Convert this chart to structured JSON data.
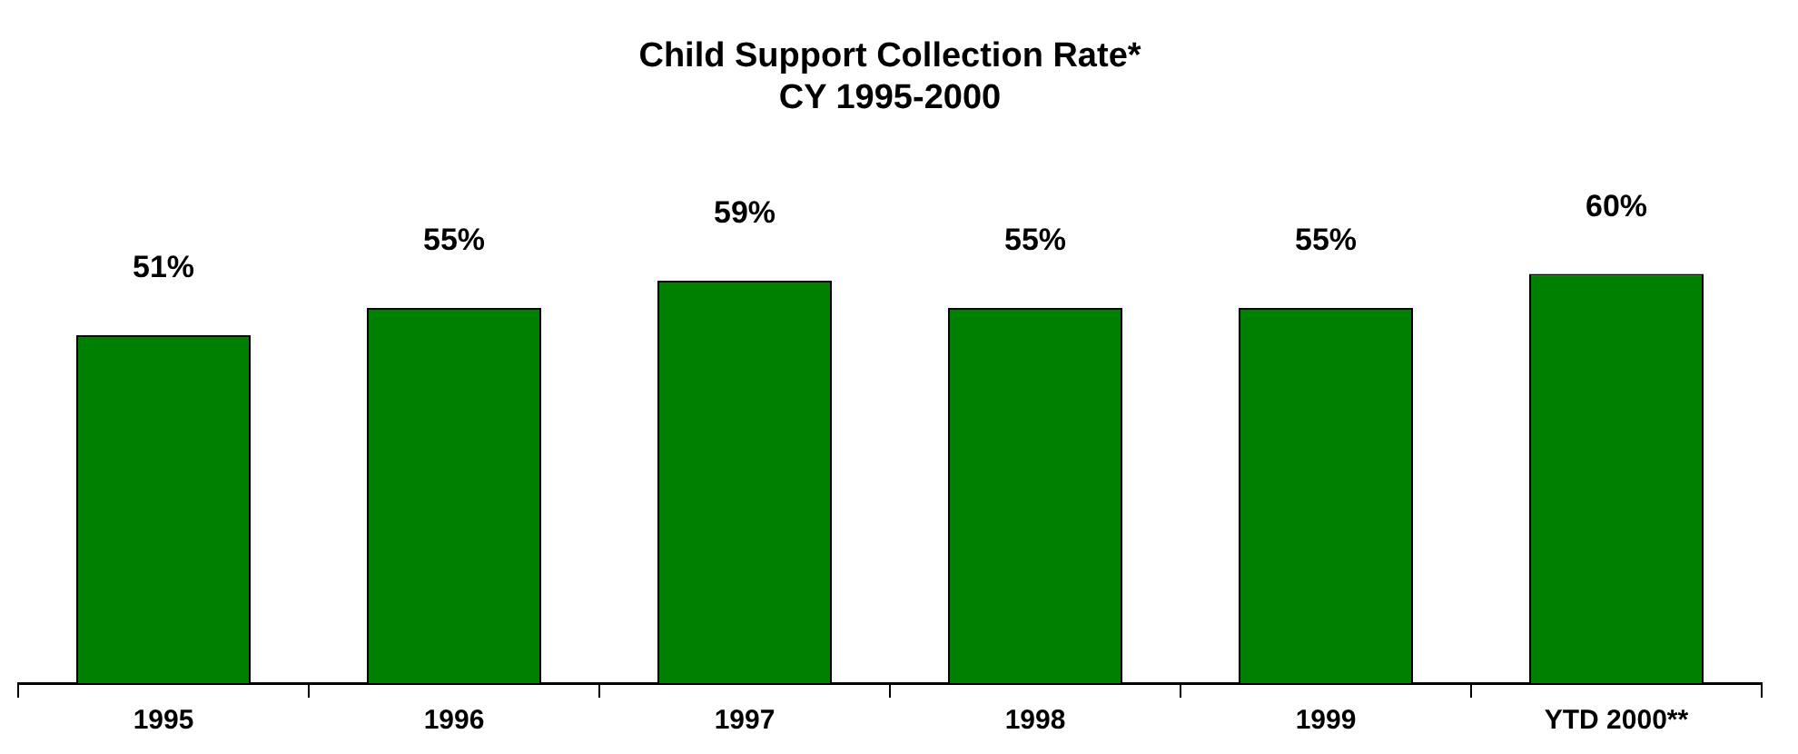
{
  "chart_data": {
    "type": "bar",
    "title": [
      "Child Support Collection Rate*",
      "CY 1995-2000"
    ],
    "categories": [
      "1995",
      "1996",
      "1997",
      "1998",
      "1999",
      "YTD 2000**"
    ],
    "values": [
      51,
      55,
      59,
      55,
      55,
      60
    ],
    "color": "#008000",
    "value_labels": [
      "51%",
      "55%",
      "59%",
      "55%",
      "55%",
      "60%"
    ],
    "grid": false,
    "legend": false
  }
}
